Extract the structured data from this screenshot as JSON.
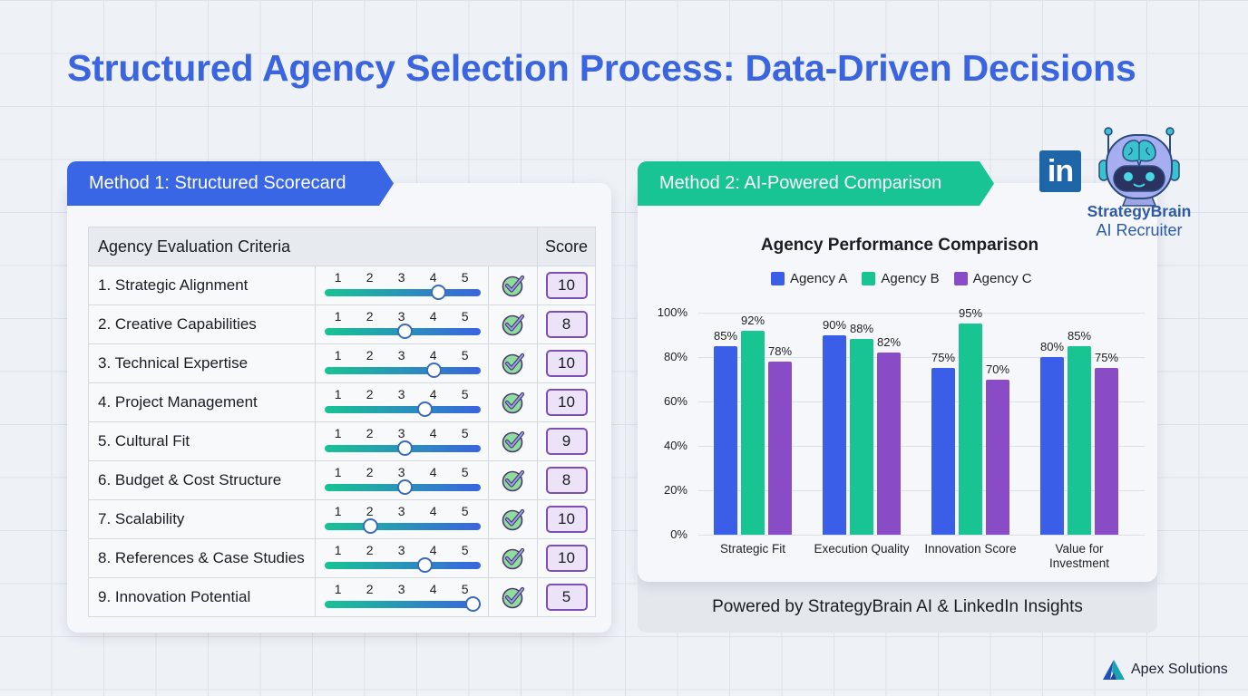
{
  "page": {
    "title": "Structured Agency Selection Process: Data-Driven Decisions"
  },
  "method1": {
    "tab_label": "Method 1: Structured Scorecard",
    "table": {
      "headers": {
        "criteria": "Agency Evaluation Criteria",
        "score": "Score"
      },
      "scale_ticks": [
        "1",
        "2",
        "3",
        "4",
        "5"
      ],
      "rows": [
        {
          "label": "1. Strategic Alignment",
          "slider_value": 4.0,
          "checked": true,
          "score": "10"
        },
        {
          "label": "2. Creative Capabilities",
          "slider_value": 3.0,
          "checked": true,
          "score": "8"
        },
        {
          "label": "3. Technical Expertise",
          "slider_value": 3.85,
          "checked": true,
          "score": "10"
        },
        {
          "label": "4. Project Management",
          "slider_value": 3.6,
          "checked": true,
          "score": "10"
        },
        {
          "label": "5. Cultural Fit",
          "slider_value": 3.0,
          "checked": true,
          "score": "9"
        },
        {
          "label": "6. Budget & Cost Structure",
          "slider_value": 3.0,
          "checked": true,
          "score": "8"
        },
        {
          "label": "7. Scalability",
          "slider_value": 2.0,
          "checked": true,
          "score": "10"
        },
        {
          "label": "8. References & Case Studies",
          "slider_value": 3.6,
          "checked": true,
          "score": "10"
        },
        {
          "label": "9. Innovation Potential",
          "slider_value": 5.0,
          "checked": true,
          "score": "5"
        }
      ]
    }
  },
  "method2": {
    "tab_label": "Method 2: AI-Powered Comparison",
    "footer": "Powered by StrategyBrain AI & LinkedIn Insights"
  },
  "branding": {
    "linkedin_icon": "in",
    "product_name": "StrategyBrain",
    "product_sub": "AI Recruiter",
    "company": "Apex Solutions"
  },
  "colors": {
    "title": "#3a64e0",
    "method1_accent": "#3866e5",
    "method2_accent": "#17c492",
    "agency_a": "#3a5ee8",
    "agency_b": "#17c492",
    "agency_c": "#8a4cc6"
  },
  "chart_data": {
    "type": "bar",
    "title": "Agency Performance Comparison",
    "categories": [
      "Strategic Fit",
      "Execution Quality",
      "Innovation Score",
      "Value for Investment"
    ],
    "series": [
      {
        "name": "Agency A",
        "color": "#3a5ee8",
        "values": [
          85,
          90,
          75,
          80
        ]
      },
      {
        "name": "Agency B",
        "color": "#17c492",
        "values": [
          92,
          88,
          95,
          85
        ]
      },
      {
        "name": "Agency C",
        "color": "#8a4cc6",
        "values": [
          78,
          82,
          70,
          75
        ]
      }
    ],
    "xlabel": "",
    "ylabel": "",
    "ylim": [
      0,
      100
    ],
    "yticks": [
      "0%",
      "20%",
      "40%",
      "60%",
      "80%",
      "100%"
    ],
    "value_format": "percent",
    "grid": true,
    "legend_position": "top"
  }
}
